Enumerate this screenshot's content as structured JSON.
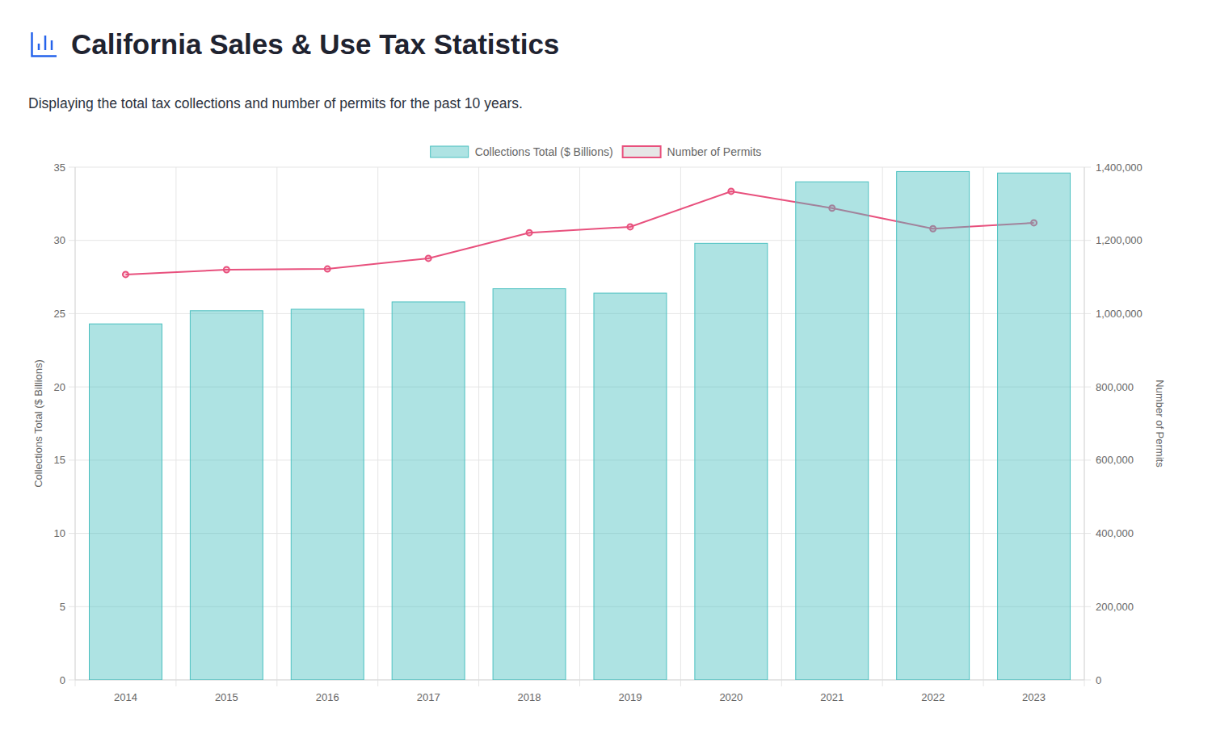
{
  "chart_data": {
    "type": "bar",
    "title": "California Sales & Use Tax Statistics",
    "subtitle": "Displaying the total tax collections and number of permits for the past 10 years.",
    "categories": [
      "2014",
      "2015",
      "2016",
      "2017",
      "2018",
      "2019",
      "2020",
      "2021",
      "2022",
      "2023"
    ],
    "series": [
      {
        "name": "Collections Total ($ Billions)",
        "type": "bar",
        "color": "#4bc0c0",
        "values": [
          24.3,
          25.2,
          25.3,
          25.8,
          26.7,
          26.4,
          29.8,
          34.0,
          34.7,
          34.6
        ]
      },
      {
        "name": "Number of Permits",
        "type": "line",
        "axis": "y2",
        "color": "#e8507d",
        "marker": "circle",
        "values": [
          1107000,
          1120000,
          1122000,
          1151000,
          1221000,
          1237000,
          1334000,
          1288000,
          1232000,
          1248000
        ]
      }
    ],
    "y_label": "Collections Total ($ Billions)",
    "y2_label": "Number of Permits",
    "ylim": [
      0,
      35
    ],
    "yticks": [
      0,
      5,
      10,
      15,
      20,
      25,
      30,
      35
    ],
    "y2lim": [
      0,
      1400000
    ],
    "y2ticks": [
      0,
      {
        "value": 200000,
        "label": "200,000"
      },
      {
        "value": 400000,
        "label": "400,000"
      },
      {
        "value": 600000,
        "label": "600,000"
      },
      {
        "value": 800000,
        "label": "800,000"
      },
      {
        "value": 1000000,
        "label": "1,000,000"
      },
      {
        "value": 1200000,
        "label": "1,200,000"
      },
      {
        "value": 1400000,
        "label": "1,400,000"
      }
    ],
    "grid": true,
    "legend": "top"
  }
}
